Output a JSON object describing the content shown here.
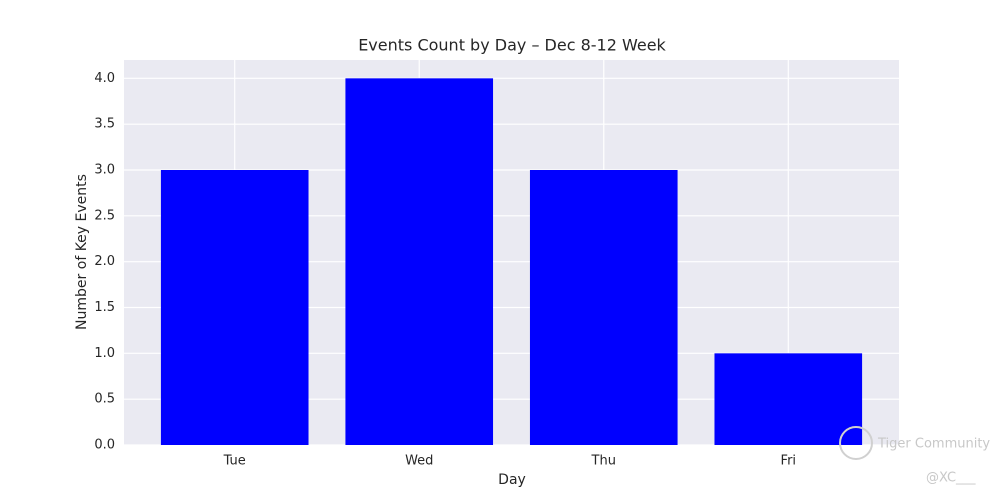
{
  "chart_data": {
    "type": "bar",
    "title": "Events Count by Day – Dec 8-12 Week",
    "x_label": "Day",
    "y_label": "Number of Key Events",
    "categories": [
      "Tue",
      "Wed",
      "Thu",
      "Fri"
    ],
    "values": [
      3,
      4,
      3,
      1
    ],
    "color": "#0000ff",
    "ylim": [
      0,
      4.2
    ],
    "yticks": [
      {
        "value": 0,
        "label": "0.0"
      },
      0.5,
      {
        "value": 1,
        "label": "1.0"
      },
      1.5,
      {
        "value": 2,
        "label": "2.0"
      },
      2.5,
      {
        "value": 3,
        "label": "3.0"
      },
      3.5,
      {
        "value": 4,
        "label": "4.0"
      }
    ],
    "grid": true,
    "background": "#eaeaf2"
  },
  "watermark": {
    "text": "Tiger Community",
    "handle": "@XC___"
  }
}
